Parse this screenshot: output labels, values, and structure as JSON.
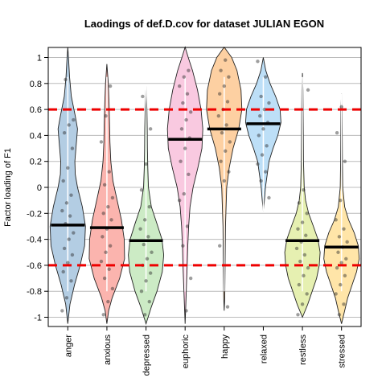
{
  "chart_data": {
    "type": "violin",
    "title": "Laodings of def.D.cov for dataset JULIAN EGON",
    "xlabel": "",
    "ylabel": "Factor loading of F1",
    "ylim": [
      -1.05,
      1.08
    ],
    "yticks": [
      -1,
      -0.8,
      -0.6,
      -0.4,
      -0.2,
      0,
      0.2,
      0.4,
      0.6,
      0.8,
      1
    ],
    "ytick_labels": [
      "-1",
      "-0.8",
      "-0.6",
      "-0.4",
      "-0.2",
      "0",
      "0.2",
      "0.4",
      "0.6",
      "0.8",
      "1"
    ],
    "grid": true,
    "reference_lines": [
      0.6,
      -0.6
    ],
    "reference_line_color": "#ee0000",
    "categories": [
      "anger",
      "anxious",
      "depressed",
      "euphoric",
      "happy",
      "relaxed",
      "restless",
      "stressed"
    ],
    "colors": [
      "#b3cde3",
      "#fbb4ae",
      "#ccebc5",
      "#f9c9e0",
      "#fdd0a2",
      "#bddff7",
      "#e6f0b1",
      "#ffe5a8"
    ],
    "means": [
      -0.29,
      -0.31,
      -0.41,
      0.37,
      0.45,
      0.49,
      -0.41,
      -0.46
    ],
    "series": [
      {
        "name": "anger",
        "range": [
          -1.05,
          1.08
        ],
        "density": [
          [
            -1.05,
            0
          ],
          [
            -0.9,
            0.12
          ],
          [
            -0.75,
            0.38
          ],
          [
            -0.6,
            0.7
          ],
          [
            -0.45,
            0.95
          ],
          [
            -0.3,
            1.0
          ],
          [
            -0.15,
            0.82
          ],
          [
            0,
            0.55
          ],
          [
            0.1,
            0.42
          ],
          [
            0.2,
            0.4
          ],
          [
            0.3,
            0.46
          ],
          [
            0.45,
            0.55
          ],
          [
            0.55,
            0.42
          ],
          [
            0.7,
            0.2
          ],
          [
            0.85,
            0.1
          ],
          [
            1.0,
            0.04
          ],
          [
            1.08,
            0
          ]
        ],
        "points": [
          -0.95,
          -0.85,
          -0.72,
          -0.65,
          -0.58,
          -0.52,
          -0.47,
          -0.4,
          -0.35,
          -0.28,
          -0.22,
          -0.18,
          -0.12,
          -0.06,
          0.05,
          0.15,
          0.3,
          0.42,
          0.48,
          0.52,
          0.83
        ]
      },
      {
        "name": "anxious",
        "range": [
          -1.05,
          0.95
        ],
        "density": [
          [
            -1.05,
            0
          ],
          [
            -0.95,
            0.1
          ],
          [
            -0.85,
            0.3
          ],
          [
            -0.7,
            0.72
          ],
          [
            -0.55,
            1.0
          ],
          [
            -0.4,
            0.98
          ],
          [
            -0.25,
            0.82
          ],
          [
            -0.1,
            0.58
          ],
          [
            0.05,
            0.34
          ],
          [
            0.2,
            0.22
          ],
          [
            0.35,
            0.17
          ],
          [
            0.5,
            0.15
          ],
          [
            0.65,
            0.12
          ],
          [
            0.8,
            0.08
          ],
          [
            0.95,
            0
          ]
        ],
        "points": [
          -0.98,
          -0.88,
          -0.78,
          -0.7,
          -0.63,
          -0.57,
          -0.5,
          -0.45,
          -0.38,
          -0.32,
          -0.25,
          -0.2,
          -0.15,
          -0.08,
          0.02,
          0.12,
          0.35,
          0.55,
          0.78
        ]
      },
      {
        "name": "depressed",
        "range": [
          -1.05,
          0.78
        ],
        "density": [
          [
            -1.05,
            0
          ],
          [
            -0.92,
            0.3
          ],
          [
            -0.8,
            0.62
          ],
          [
            -0.65,
            0.92
          ],
          [
            -0.52,
            1.0
          ],
          [
            -0.4,
            0.9
          ],
          [
            -0.28,
            0.62
          ],
          [
            -0.15,
            0.3
          ],
          [
            0,
            0.14
          ],
          [
            0.15,
            0.1
          ],
          [
            0.3,
            0.08
          ],
          [
            0.45,
            0.07
          ],
          [
            0.6,
            0.05
          ],
          [
            0.78,
            0
          ]
        ],
        "points": [
          -0.98,
          -0.88,
          -0.8,
          -0.72,
          -0.66,
          -0.6,
          -0.55,
          -0.5,
          -0.44,
          -0.38,
          -0.32,
          -0.25,
          -0.15,
          -0.02,
          0.18,
          0.45,
          0.7
        ]
      },
      {
        "name": "euphoric",
        "range": [
          -1.05,
          1.08
        ],
        "density": [
          [
            -1.05,
            0
          ],
          [
            -0.9,
            0.04
          ],
          [
            -0.75,
            0.08
          ],
          [
            -0.6,
            0.12
          ],
          [
            -0.45,
            0.15
          ],
          [
            -0.3,
            0.2
          ],
          [
            -0.15,
            0.28
          ],
          [
            0,
            0.45
          ],
          [
            0.15,
            0.72
          ],
          [
            0.3,
            0.95
          ],
          [
            0.45,
            1.0
          ],
          [
            0.6,
            0.9
          ],
          [
            0.75,
            0.7
          ],
          [
            0.9,
            0.42
          ],
          [
            1.0,
            0.18
          ],
          [
            1.08,
            0
          ]
        ],
        "points": [
          -0.95,
          -0.7,
          -0.45,
          -0.3,
          -0.1,
          -0.05,
          0.1,
          0.2,
          0.3,
          0.38,
          0.45,
          0.52,
          0.58,
          0.65,
          0.72,
          0.78,
          0.85,
          0.9
        ]
      },
      {
        "name": "happy",
        "range": [
          -0.95,
          1.08
        ],
        "density": [
          [
            -0.95,
            0
          ],
          [
            -0.85,
            0.03
          ],
          [
            -0.6,
            0.05
          ],
          [
            -0.3,
            0.07
          ],
          [
            0,
            0.14
          ],
          [
            0.15,
            0.28
          ],
          [
            0.3,
            0.5
          ],
          [
            0.45,
            0.82
          ],
          [
            0.6,
            1.0
          ],
          [
            0.75,
            0.95
          ],
          [
            0.9,
            0.72
          ],
          [
            1.0,
            0.42
          ],
          [
            1.08,
            0
          ]
        ],
        "points": [
          -0.92,
          -0.45,
          0.05,
          0.12,
          0.2,
          0.28,
          0.35,
          0.42,
          0.48,
          0.55,
          0.6,
          0.66,
          0.72,
          0.78,
          0.85,
          0.9,
          0.98
        ]
      },
      {
        "name": "relaxed",
        "range": [
          -0.18,
          1.0
        ],
        "density": [
          [
            -0.18,
            0
          ],
          [
            -0.1,
            0.06
          ],
          [
            0,
            0.12
          ],
          [
            0.1,
            0.22
          ],
          [
            0.2,
            0.32
          ],
          [
            0.3,
            0.55
          ],
          [
            0.4,
            0.82
          ],
          [
            0.5,
            1.0
          ],
          [
            0.6,
            0.95
          ],
          [
            0.7,
            0.7
          ],
          [
            0.8,
            0.38
          ],
          [
            0.9,
            0.14
          ],
          [
            1.0,
            0
          ]
        ],
        "points": [
          -0.08,
          0.05,
          0.12,
          0.18,
          0.25,
          0.32,
          0.4,
          0.45,
          0.5,
          0.55,
          0.6,
          0.65,
          0.7,
          0.85,
          0.97
        ]
      },
      {
        "name": "restless",
        "range": [
          -1.0,
          0.88
        ],
        "density": [
          [
            -1.0,
            0
          ],
          [
            -0.9,
            0.3
          ],
          [
            -0.8,
            0.55
          ],
          [
            -0.7,
            0.8
          ],
          [
            -0.6,
            0.95
          ],
          [
            -0.5,
            1.0
          ],
          [
            -0.4,
            0.88
          ],
          [
            -0.3,
            0.62
          ],
          [
            -0.2,
            0.35
          ],
          [
            -0.1,
            0.18
          ],
          [
            0,
            0.1
          ],
          [
            0.2,
            0.06
          ],
          [
            0.4,
            0.05
          ],
          [
            0.6,
            0.04
          ],
          [
            0.75,
            0.03
          ],
          [
            0.88,
            0
          ]
        ],
        "points": [
          -0.98,
          -0.9,
          -0.82,
          -0.75,
          -0.68,
          -0.62,
          -0.57,
          -0.52,
          -0.47,
          -0.42,
          -0.37,
          -0.32,
          -0.27,
          -0.2,
          -0.12,
          -0.02,
          0.75
        ]
      },
      {
        "name": "stressed",
        "range": [
          -1.05,
          0.72
        ],
        "density": [
          [
            -1.05,
            0
          ],
          [
            -0.95,
            0.18
          ],
          [
            -0.85,
            0.35
          ],
          [
            -0.75,
            0.6
          ],
          [
            -0.65,
            0.85
          ],
          [
            -0.55,
            1.0
          ],
          [
            -0.45,
            0.95
          ],
          [
            -0.35,
            0.72
          ],
          [
            -0.25,
            0.4
          ],
          [
            -0.15,
            0.18
          ],
          [
            0,
            0.07
          ],
          [
            0.2,
            0.05
          ],
          [
            0.4,
            0.04
          ],
          [
            0.6,
            0.03
          ],
          [
            0.72,
            0
          ]
        ],
        "points": [
          -0.98,
          -0.9,
          -0.82,
          -0.75,
          -0.68,
          -0.62,
          -0.58,
          -0.55,
          -0.5,
          -0.46,
          -0.42,
          -0.38,
          -0.32,
          -0.25,
          -0.1,
          0.2,
          0.42,
          0.62
        ]
      }
    ]
  }
}
